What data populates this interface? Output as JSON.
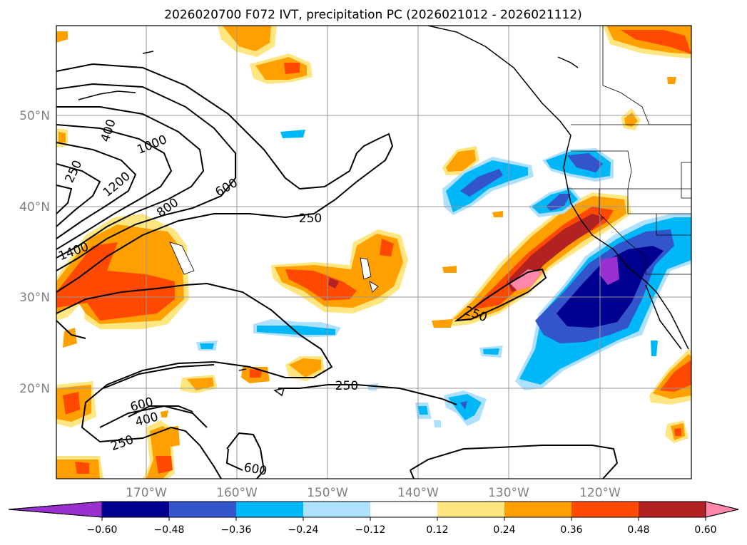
{
  "title": "2026020700 F072 IVT, precipitation PC (2026021012 - 2026021112)",
  "lat_labels": [
    "50°N",
    "40°N",
    "30°N",
    "20°N"
  ],
  "lon_labels": [
    "170°W",
    "160°W",
    "150°W",
    "140°W",
    "130°W",
    "120°W"
  ],
  "colorbar": {
    "ticks": [
      "−0.60",
      "−0.48",
      "−0.36",
      "−0.24",
      "−0.12",
      "0.12",
      "0.24",
      "0.36",
      "0.48",
      "0.60"
    ],
    "colors": [
      "#9b30d0",
      "#000090",
      "#3355cc",
      "#00b8f8",
      "#aee0ff",
      "#ffffff",
      "#ffe680",
      "#ffa000",
      "#ff4800",
      "#b22222",
      "#ff88aa"
    ]
  },
  "contour_labels": {
    "c400_nw": "400",
    "c250_nw": "250",
    "c1000": "1000",
    "c1200": "1200",
    "c800": "800",
    "c600_n": "600",
    "c250_mid": "250",
    "c1400": "1400",
    "c250_coast": "250",
    "c250_south": "250",
    "c600_sw": "600",
    "c400_sw": "400",
    "c250_sw": "250",
    "c600_bottom": "600"
  },
  "colors": {
    "purple": "#9b30d0",
    "navy": "#000090",
    "blue": "#3355cc",
    "sky": "#00b8f8",
    "pale": "#aee0ff",
    "yellow": "#ffe680",
    "orange": "#ffa000",
    "redorange": "#ff4800",
    "darkred": "#b22222",
    "pink": "#ff88aa"
  }
}
